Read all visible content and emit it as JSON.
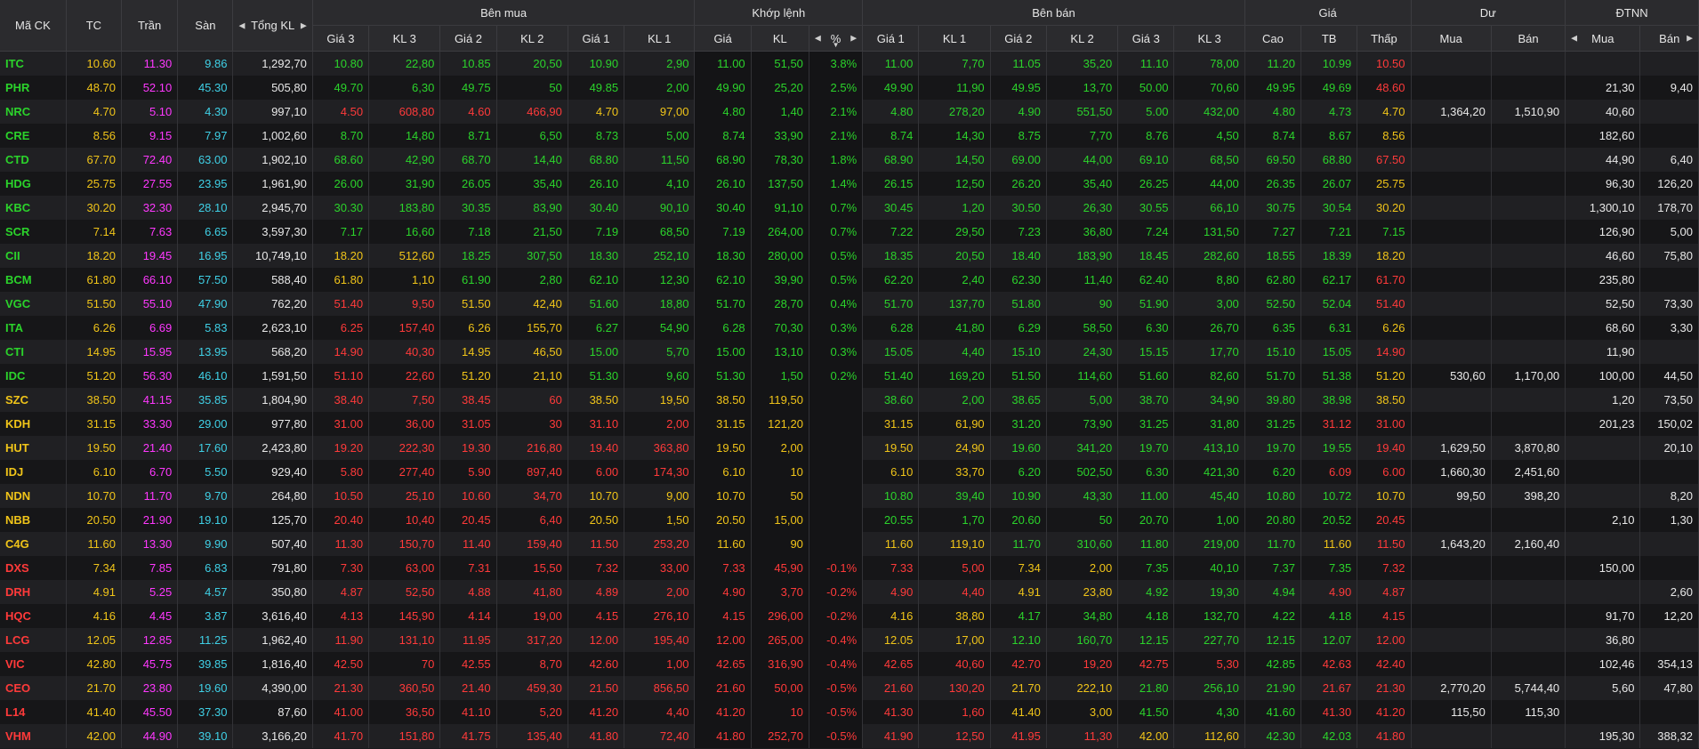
{
  "colors": {
    "up": "#2bd32b",
    "down": "#ff3a3a",
    "ref": "#f0c419",
    "ceil": "#ff38ff",
    "floor": "#3fd0e6"
  },
  "icons": {
    "prev": "caret-left-icon",
    "next": "caret-right-icon",
    "sort": "sort-down-icon"
  },
  "header": {
    "symbol": "Mã CK",
    "ref": "TC",
    "ceil": "Trần",
    "floor": "Sàn",
    "total": "Tổng KL",
    "buy_group": "Bên mua",
    "match_group": "Khớp lệnh",
    "sell_group": "Bên bán",
    "price_group": "Giá",
    "remain_group": "Dư",
    "foreign_group": "ĐTNN",
    "buy_cols": [
      "Giá 3",
      "KL 3",
      "Giá 2",
      "KL 2",
      "Giá 1",
      "KL 1"
    ],
    "match_cols": [
      "Giá",
      "KL",
      "%"
    ],
    "sell_cols": [
      "Giá 1",
      "KL 1",
      "Giá 2",
      "KL 2",
      "Giá 3",
      "KL 3"
    ],
    "price_cols": [
      "Cao",
      "TB",
      "Thấp"
    ],
    "remain_cols": [
      "Mua",
      "Bán"
    ],
    "foreign_cols": [
      "Mua",
      "Bán"
    ]
  },
  "rows": [
    {
      "sym": "ITC",
      "tc": "10.60",
      "tran": "11.30",
      "san": "9.86",
      "tong": "1,292,70",
      "b3": "10.80",
      "bk3": "22,80",
      "b2": "10.85",
      "bk2": "20,50",
      "b1": "10.90",
      "bk1": "2,90",
      "mp": "11.00",
      "mk": "51,50",
      "pct": "3.8%",
      "s1": "11.00",
      "sk1": "7,70",
      "s2": "11.05",
      "sk2": "35,20",
      "s3": "11.10",
      "sk3": "78,00",
      "cao": "11.20",
      "tb": "10.99",
      "thap": "10.50",
      "dm": "",
      "db": "",
      "fm": "",
      "fb": ""
    },
    {
      "sym": "PHR",
      "tc": "48.70",
      "tran": "52.10",
      "san": "45.30",
      "tong": "505,80",
      "b3": "49.70",
      "bk3": "6,30",
      "b2": "49.75",
      "bk2": "50",
      "b1": "49.85",
      "bk1": "2,00",
      "mp": "49.90",
      "mk": "25,20",
      "pct": "2.5%",
      "s1": "49.90",
      "sk1": "11,90",
      "s2": "49.95",
      "sk2": "13,70",
      "s3": "50.00",
      "sk3": "70,60",
      "cao": "49.95",
      "tb": "49.69",
      "thap": "48.60",
      "dm": "",
      "db": "",
      "fm": "21,30",
      "fb": "9,40"
    },
    {
      "sym": "NRC",
      "tc": "4.70",
      "tran": "5.10",
      "san": "4.30",
      "tong": "997,10",
      "b3": "4.50",
      "bk3": "608,80",
      "b2": "4.60",
      "bk2": "466,90",
      "b1": "4.70",
      "bk1": "97,00",
      "mp": "4.80",
      "mk": "1,40",
      "pct": "2.1%",
      "s1": "4.80",
      "sk1": "278,20",
      "s2": "4.90",
      "sk2": "551,50",
      "s3": "5.00",
      "sk3": "432,00",
      "cao": "4.80",
      "tb": "4.73",
      "thap": "4.70",
      "dm": "1,364,20",
      "db": "1,510,90",
      "fm": "40,60",
      "fb": ""
    },
    {
      "sym": "CRE",
      "tc": "8.56",
      "tran": "9.15",
      "san": "7.97",
      "tong": "1,002,60",
      "b3": "8.70",
      "bk3": "14,80",
      "b2": "8.71",
      "bk2": "6,50",
      "b1": "8.73",
      "bk1": "5,00",
      "mp": "8.74",
      "mk": "33,90",
      "pct": "2.1%",
      "s1": "8.74",
      "sk1": "14,30",
      "s2": "8.75",
      "sk2": "7,70",
      "s3": "8.76",
      "sk3": "4,50",
      "cao": "8.74",
      "tb": "8.67",
      "thap": "8.56",
      "dm": "",
      "db": "",
      "fm": "182,60",
      "fb": ""
    },
    {
      "sym": "CTD",
      "tc": "67.70",
      "tran": "72.40",
      "san": "63.00",
      "tong": "1,902,10",
      "b3": "68.60",
      "bk3": "42,90",
      "b2": "68.70",
      "bk2": "14,40",
      "b1": "68.80",
      "bk1": "11,50",
      "mp": "68.90",
      "mk": "78,30",
      "pct": "1.8%",
      "s1": "68.90",
      "sk1": "14,50",
      "s2": "69.00",
      "sk2": "44,00",
      "s3": "69.10",
      "sk3": "68,50",
      "cao": "69.50",
      "tb": "68.80",
      "thap": "67.50",
      "dm": "",
      "db": "",
      "fm": "44,90",
      "fb": "6,40"
    },
    {
      "sym": "HDG",
      "tc": "25.75",
      "tran": "27.55",
      "san": "23.95",
      "tong": "1,961,90",
      "b3": "26.00",
      "bk3": "31,90",
      "b2": "26.05",
      "bk2": "35,40",
      "b1": "26.10",
      "bk1": "4,10",
      "mp": "26.10",
      "mk": "137,50",
      "pct": "1.4%",
      "s1": "26.15",
      "sk1": "12,50",
      "s2": "26.20",
      "sk2": "35,40",
      "s3": "26.25",
      "sk3": "44,00",
      "cao": "26.35",
      "tb": "26.07",
      "thap": "25.75",
      "dm": "",
      "db": "",
      "fm": "96,30",
      "fb": "126,20"
    },
    {
      "sym": "KBC",
      "tc": "30.20",
      "tran": "32.30",
      "san": "28.10",
      "tong": "2,945,70",
      "b3": "30.30",
      "bk3": "183,80",
      "b2": "30.35",
      "bk2": "83,90",
      "b1": "30.40",
      "bk1": "90,10",
      "mp": "30.40",
      "mk": "91,10",
      "pct": "0.7%",
      "s1": "30.45",
      "sk1": "1,20",
      "s2": "30.50",
      "sk2": "26,30",
      "s3": "30.55",
      "sk3": "66,10",
      "cao": "30.75",
      "tb": "30.54",
      "thap": "30.20",
      "dm": "",
      "db": "",
      "fm": "1,300,10",
      "fb": "178,70"
    },
    {
      "sym": "SCR",
      "tc": "7.14",
      "tran": "7.63",
      "san": "6.65",
      "tong": "3,597,30",
      "b3": "7.17",
      "bk3": "16,60",
      "b2": "7.18",
      "bk2": "21,50",
      "b1": "7.19",
      "bk1": "68,50",
      "mp": "7.19",
      "mk": "264,00",
      "pct": "0.7%",
      "s1": "7.22",
      "sk1": "29,50",
      "s2": "7.23",
      "sk2": "36,80",
      "s3": "7.24",
      "sk3": "131,50",
      "cao": "7.27",
      "tb": "7.21",
      "thap": "7.15",
      "dm": "",
      "db": "",
      "fm": "126,90",
      "fb": "5,00"
    },
    {
      "sym": "CII",
      "tc": "18.20",
      "tran": "19.45",
      "san": "16.95",
      "tong": "10,749,10",
      "b3": "18.20",
      "bk3": "512,60",
      "b2": "18.25",
      "bk2": "307,50",
      "b1": "18.30",
      "bk1": "252,10",
      "mp": "18.30",
      "mk": "280,00",
      "pct": "0.5%",
      "s1": "18.35",
      "sk1": "20,50",
      "s2": "18.40",
      "sk2": "183,90",
      "s3": "18.45",
      "sk3": "282,60",
      "cao": "18.55",
      "tb": "18.39",
      "thap": "18.20",
      "dm": "",
      "db": "",
      "fm": "46,60",
      "fb": "75,80"
    },
    {
      "sym": "BCM",
      "tc": "61.80",
      "tran": "66.10",
      "san": "57.50",
      "tong": "588,40",
      "b3": "61.80",
      "bk3": "1,10",
      "b2": "61.90",
      "bk2": "2,80",
      "b1": "62.10",
      "bk1": "12,30",
      "mp": "62.10",
      "mk": "39,90",
      "pct": "0.5%",
      "s1": "62.20",
      "sk1": "2,40",
      "s2": "62.30",
      "sk2": "11,40",
      "s3": "62.40",
      "sk3": "8,80",
      "cao": "62.80",
      "tb": "62.17",
      "thap": "61.70",
      "dm": "",
      "db": "",
      "fm": "235,80",
      "fb": ""
    },
    {
      "sym": "VGC",
      "tc": "51.50",
      "tran": "55.10",
      "san": "47.90",
      "tong": "762,20",
      "b3": "51.40",
      "bk3": "9,50",
      "b2": "51.50",
      "bk2": "42,40",
      "b1": "51.60",
      "bk1": "18,80",
      "mp": "51.70",
      "mk": "28,70",
      "pct": "0.4%",
      "s1": "51.70",
      "sk1": "137,70",
      "s2": "51.80",
      "sk2": "90",
      "s3": "51.90",
      "sk3": "3,00",
      "cao": "52.50",
      "tb": "52.04",
      "thap": "51.40",
      "dm": "",
      "db": "",
      "fm": "52,50",
      "fb": "73,30"
    },
    {
      "sym": "ITA",
      "tc": "6.26",
      "tran": "6.69",
      "san": "5.83",
      "tong": "2,623,10",
      "b3": "6.25",
      "bk3": "157,40",
      "b2": "6.26",
      "bk2": "155,70",
      "b1": "6.27",
      "bk1": "54,90",
      "mp": "6.28",
      "mk": "70,30",
      "pct": "0.3%",
      "s1": "6.28",
      "sk1": "41,80",
      "s2": "6.29",
      "sk2": "58,50",
      "s3": "6.30",
      "sk3": "26,70",
      "cao": "6.35",
      "tb": "6.31",
      "thap": "6.26",
      "dm": "",
      "db": "",
      "fm": "68,60",
      "fb": "3,30"
    },
    {
      "sym": "CTI",
      "tc": "14.95",
      "tran": "15.95",
      "san": "13.95",
      "tong": "568,20",
      "b3": "14.90",
      "bk3": "40,30",
      "b2": "14.95",
      "bk2": "46,50",
      "b1": "15.00",
      "bk1": "5,70",
      "mp": "15.00",
      "mk": "13,10",
      "pct": "0.3%",
      "s1": "15.05",
      "sk1": "4,40",
      "s2": "15.10",
      "sk2": "24,30",
      "s3": "15.15",
      "sk3": "17,70",
      "cao": "15.10",
      "tb": "15.05",
      "thap": "14.90",
      "dm": "",
      "db": "",
      "fm": "11,90",
      "fb": ""
    },
    {
      "sym": "IDC",
      "tc": "51.20",
      "tran": "56.30",
      "san": "46.10",
      "tong": "1,591,50",
      "b3": "51.10",
      "bk3": "22,60",
      "b2": "51.20",
      "bk2": "21,10",
      "b1": "51.30",
      "bk1": "9,60",
      "mp": "51.30",
      "mk": "1,50",
      "pct": "0.2%",
      "s1": "51.40",
      "sk1": "169,20",
      "s2": "51.50",
      "sk2": "114,60",
      "s3": "51.60",
      "sk3": "82,60",
      "cao": "51.70",
      "tb": "51.38",
      "thap": "51.20",
      "dm": "530,60",
      "db": "1,170,00",
      "fm": "100,00",
      "fb": "44,50"
    },
    {
      "sym": "SZC",
      "tc": "38.50",
      "tran": "41.15",
      "san": "35.85",
      "tong": "1,804,90",
      "b3": "38.40",
      "bk3": "7,50",
      "b2": "38.45",
      "bk2": "60",
      "b1": "38.50",
      "bk1": "19,50",
      "mp": "38.50",
      "mk": "119,50",
      "pct": "",
      "s1": "38.60",
      "sk1": "2,00",
      "s2": "38.65",
      "sk2": "5,00",
      "s3": "38.70",
      "sk3": "34,90",
      "cao": "39.80",
      "tb": "38.98",
      "thap": "38.50",
      "dm": "",
      "db": "",
      "fm": "1,20",
      "fb": "73,50"
    },
    {
      "sym": "KDH",
      "tc": "31.15",
      "tran": "33.30",
      "san": "29.00",
      "tong": "977,80",
      "b3": "31.00",
      "bk3": "36,00",
      "b2": "31.05",
      "bk2": "30",
      "b1": "31.10",
      "bk1": "2,00",
      "mp": "31.15",
      "mk": "121,20",
      "pct": "",
      "s1": "31.15",
      "sk1": "61,90",
      "s2": "31.20",
      "sk2": "73,90",
      "s3": "31.25",
      "sk3": "31,80",
      "cao": "31.25",
      "tb": "31.12",
      "thap": "31.00",
      "dm": "",
      "db": "",
      "fm": "201,23",
      "fb": "150,02"
    },
    {
      "sym": "HUT",
      "tc": "19.50",
      "tran": "21.40",
      "san": "17.60",
      "tong": "2,423,80",
      "b3": "19.20",
      "bk3": "222,30",
      "b2": "19.30",
      "bk2": "216,80",
      "b1": "19.40",
      "bk1": "363,80",
      "mp": "19.50",
      "mk": "2,00",
      "pct": "",
      "s1": "19.50",
      "sk1": "24,90",
      "s2": "19.60",
      "sk2": "341,20",
      "s3": "19.70",
      "sk3": "413,10",
      "cao": "19.70",
      "tb": "19.55",
      "thap": "19.40",
      "dm": "1,629,50",
      "db": "3,870,80",
      "fm": "",
      "fb": "20,10"
    },
    {
      "sym": "IDJ",
      "tc": "6.10",
      "tran": "6.70",
      "san": "5.50",
      "tong": "929,40",
      "b3": "5.80",
      "bk3": "277,40",
      "b2": "5.90",
      "bk2": "897,40",
      "b1": "6.00",
      "bk1": "174,30",
      "mp": "6.10",
      "mk": "10",
      "pct": "",
      "s1": "6.10",
      "sk1": "33,70",
      "s2": "6.20",
      "sk2": "502,50",
      "s3": "6.30",
      "sk3": "421,30",
      "cao": "6.20",
      "tb": "6.09",
      "thap": "6.00",
      "dm": "1,660,30",
      "db": "2,451,60",
      "fm": "",
      "fb": ""
    },
    {
      "sym": "NDN",
      "tc": "10.70",
      "tran": "11.70",
      "san": "9.70",
      "tong": "264,80",
      "b3": "10.50",
      "bk3": "25,10",
      "b2": "10.60",
      "bk2": "34,70",
      "b1": "10.70",
      "bk1": "9,00",
      "mp": "10.70",
      "mk": "50",
      "pct": "",
      "s1": "10.80",
      "sk1": "39,40",
      "s2": "10.90",
      "sk2": "43,30",
      "s3": "11.00",
      "sk3": "45,40",
      "cao": "10.80",
      "tb": "10.72",
      "thap": "10.70",
      "dm": "99,50",
      "db": "398,20",
      "fm": "",
      "fb": "8,20"
    },
    {
      "sym": "NBB",
      "tc": "20.50",
      "tran": "21.90",
      "san": "19.10",
      "tong": "125,70",
      "b3": "20.40",
      "bk3": "10,40",
      "b2": "20.45",
      "bk2": "6,40",
      "b1": "20.50",
      "bk1": "1,50",
      "mp": "20.50",
      "mk": "15,00",
      "pct": "",
      "s1": "20.55",
      "sk1": "1,70",
      "s2": "20.60",
      "sk2": "50",
      "s3": "20.70",
      "sk3": "1,00",
      "cao": "20.80",
      "tb": "20.52",
      "thap": "20.45",
      "dm": "",
      "db": "",
      "fm": "2,10",
      "fb": "1,30"
    },
    {
      "sym": "C4G",
      "tc": "11.60",
      "tran": "13.30",
      "san": "9.90",
      "tong": "507,40",
      "b3": "11.30",
      "bk3": "150,70",
      "b2": "11.40",
      "bk2": "159,40",
      "b1": "11.50",
      "bk1": "253,20",
      "mp": "11.60",
      "mk": "90",
      "pct": "",
      "s1": "11.60",
      "sk1": "119,10",
      "s2": "11.70",
      "sk2": "310,60",
      "s3": "11.80",
      "sk3": "219,00",
      "cao": "11.70",
      "tb": "11.60",
      "thap": "11.50",
      "dm": "1,643,20",
      "db": "2,160,40",
      "fm": "",
      "fb": ""
    },
    {
      "sym": "DXS",
      "tc": "7.34",
      "tran": "7.85",
      "san": "6.83",
      "tong": "791,80",
      "b3": "7.30",
      "bk3": "63,00",
      "b2": "7.31",
      "bk2": "15,50",
      "b1": "7.32",
      "bk1": "33,00",
      "mp": "7.33",
      "mk": "45,90",
      "pct": "-0.1%",
      "s1": "7.33",
      "sk1": "5,00",
      "s2": "7.34",
      "sk2": "2,00",
      "s3": "7.35",
      "sk3": "40,10",
      "cao": "7.37",
      "tb": "7.35",
      "thap": "7.32",
      "dm": "",
      "db": "",
      "fm": "150,00",
      "fb": ""
    },
    {
      "sym": "DRH",
      "tc": "4.91",
      "tran": "5.25",
      "san": "4.57",
      "tong": "350,80",
      "b3": "4.87",
      "bk3": "52,50",
      "b2": "4.88",
      "bk2": "41,80",
      "b1": "4.89",
      "bk1": "2,00",
      "mp": "4.90",
      "mk": "3,70",
      "pct": "-0.2%",
      "s1": "4.90",
      "sk1": "4,40",
      "s2": "4.91",
      "sk2": "23,80",
      "s3": "4.92",
      "sk3": "19,30",
      "cao": "4.94",
      "tb": "4.90",
      "thap": "4.87",
      "dm": "",
      "db": "",
      "fm": "",
      "fb": "2,60"
    },
    {
      "sym": "HQC",
      "tc": "4.16",
      "tran": "4.45",
      "san": "3.87",
      "tong": "3,616,40",
      "b3": "4.13",
      "bk3": "145,90",
      "b2": "4.14",
      "bk2": "19,00",
      "b1": "4.15",
      "bk1": "276,10",
      "mp": "4.15",
      "mk": "296,00",
      "pct": "-0.2%",
      "s1": "4.16",
      "sk1": "38,80",
      "s2": "4.17",
      "sk2": "34,80",
      "s3": "4.18",
      "sk3": "132,70",
      "cao": "4.22",
      "tb": "4.18",
      "thap": "4.15",
      "dm": "",
      "db": "",
      "fm": "91,70",
      "fb": "12,20"
    },
    {
      "sym": "LCG",
      "tc": "12.05",
      "tran": "12.85",
      "san": "11.25",
      "tong": "1,962,40",
      "b3": "11.90",
      "bk3": "131,10",
      "b2": "11.95",
      "bk2": "317,20",
      "b1": "12.00",
      "bk1": "195,40",
      "mp": "12.00",
      "mk": "265,00",
      "pct": "-0.4%",
      "s1": "12.05",
      "sk1": "17,00",
      "s2": "12.10",
      "sk2": "160,70",
      "s3": "12.15",
      "sk3": "227,70",
      "cao": "12.15",
      "tb": "12.07",
      "thap": "12.00",
      "dm": "",
      "db": "",
      "fm": "36,80",
      "fb": ""
    },
    {
      "sym": "VIC",
      "tc": "42.80",
      "tran": "45.75",
      "san": "39.85",
      "tong": "1,816,40",
      "b3": "42.50",
      "bk3": "70",
      "b2": "42.55",
      "bk2": "8,70",
      "b1": "42.60",
      "bk1": "1,00",
      "mp": "42.65",
      "mk": "316,90",
      "pct": "-0.4%",
      "s1": "42.65",
      "sk1": "40,60",
      "s2": "42.70",
      "sk2": "19,20",
      "s3": "42.75",
      "sk3": "5,30",
      "cao": "42.85",
      "tb": "42.63",
      "thap": "42.40",
      "dm": "",
      "db": "",
      "fm": "102,46",
      "fb": "354,13"
    },
    {
      "sym": "CEO",
      "tc": "21.70",
      "tran": "23.80",
      "san": "19.60",
      "tong": "4,390,00",
      "b3": "21.30",
      "bk3": "360,50",
      "b2": "21.40",
      "bk2": "459,30",
      "b1": "21.50",
      "bk1": "856,50",
      "mp": "21.60",
      "mk": "50,00",
      "pct": "-0.5%",
      "s1": "21.60",
      "sk1": "130,20",
      "s2": "21.70",
      "sk2": "222,10",
      "s3": "21.80",
      "sk3": "256,10",
      "cao": "21.90",
      "tb": "21.67",
      "thap": "21.30",
      "dm": "2,770,20",
      "db": "5,744,40",
      "fm": "5,60",
      "fb": "47,80"
    },
    {
      "sym": "L14",
      "tc": "41.40",
      "tran": "45.50",
      "san": "37.30",
      "tong": "87,60",
      "b3": "41.00",
      "bk3": "36,50",
      "b2": "41.10",
      "bk2": "5,20",
      "b1": "41.20",
      "bk1": "4,40",
      "mp": "41.20",
      "mk": "10",
      "pct": "-0.5%",
      "s1": "41.30",
      "sk1": "1,60",
      "s2": "41.40",
      "sk2": "3,00",
      "s3": "41.50",
      "sk3": "4,30",
      "cao": "41.60",
      "tb": "41.30",
      "thap": "41.20",
      "dm": "115,50",
      "db": "115,30",
      "fm": "",
      "fb": ""
    },
    {
      "sym": "VHM",
      "tc": "42.00",
      "tran": "44.90",
      "san": "39.10",
      "tong": "3,166,20",
      "b3": "41.70",
      "bk3": "151,80",
      "b2": "41.75",
      "bk2": "135,40",
      "b1": "41.80",
      "bk1": "72,40",
      "mp": "41.80",
      "mk": "252,70",
      "pct": "-0.5%",
      "s1": "41.90",
      "sk1": "12,50",
      "s2": "41.95",
      "sk2": "11,30",
      "s3": "42.00",
      "sk3": "112,60",
      "cao": "42.30",
      "tb": "42.03",
      "thap": "41.80",
      "dm": "",
      "db": "",
      "fm": "195,30",
      "fb": "388,32"
    }
  ]
}
